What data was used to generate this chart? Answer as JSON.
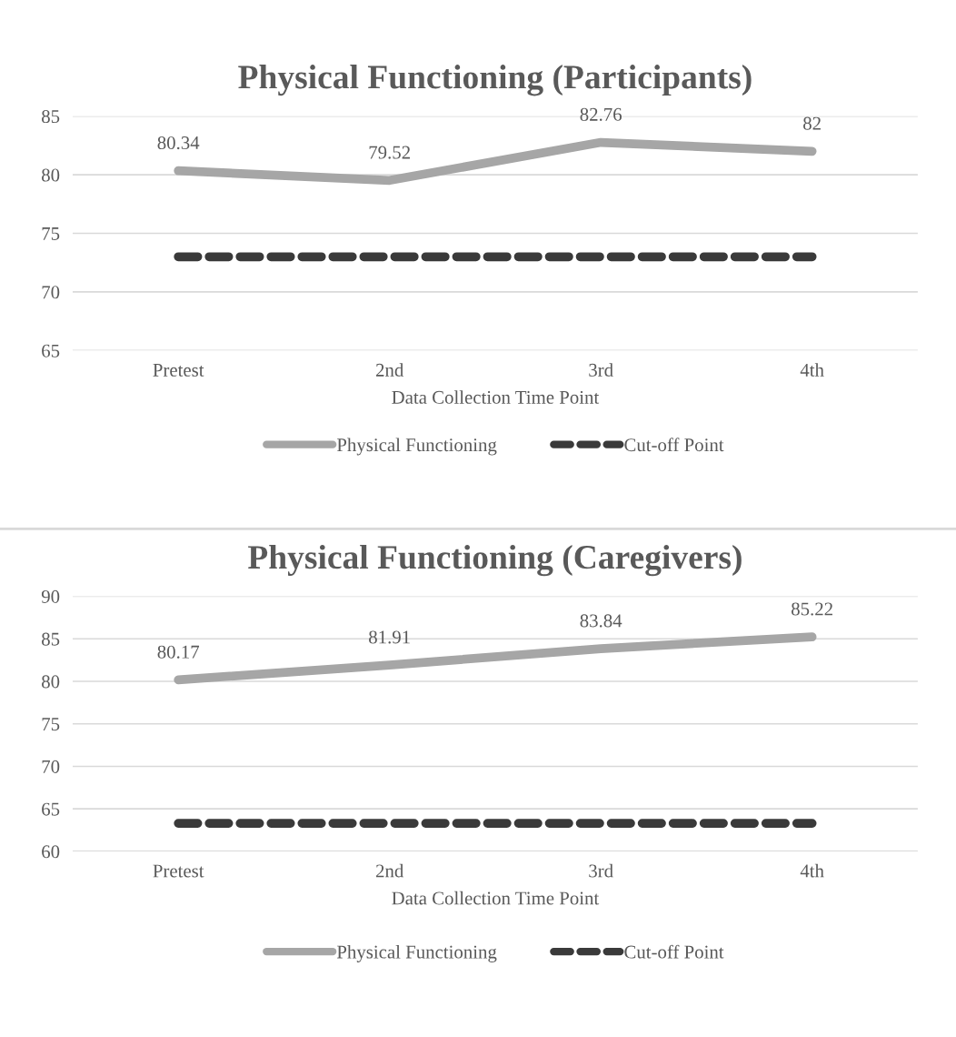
{
  "chart_data": [
    {
      "type": "line",
      "title": "Physical Functioning (Participants)",
      "xlabel": "Data Collection Time Point",
      "categories": [
        "Pretest",
        "2nd",
        "3rd",
        "4th"
      ],
      "series": [
        {
          "name": "Physical Functioning",
          "color": "#a6a6a6",
          "values": [
            80.34,
            79.52,
            82.76,
            82
          ],
          "value_labels": [
            "80.34",
            "79.52",
            "82.76",
            "82"
          ],
          "line_style": "solid"
        },
        {
          "name": "Cut-off Point",
          "color": "#3a3a3a",
          "values": [
            73,
            73,
            73,
            73
          ],
          "line_style": "dashed"
        }
      ],
      "ylim": [
        65,
        85
      ],
      "yticks": [
        65,
        70,
        75,
        80,
        85
      ],
      "grid": "y",
      "legend": "bottom",
      "marker": "none"
    },
    {
      "type": "line",
      "title": "Physical Functioning (Caregivers)",
      "xlabel": "Data Collection Time Point",
      "categories": [
        "Pretest",
        "2nd",
        "3rd",
        "4th"
      ],
      "series": [
        {
          "name": "Physical Functioning",
          "color": "#a6a6a6",
          "values": [
            80.17,
            81.91,
            83.84,
            85.22
          ],
          "value_labels": [
            "80.17",
            "81.91",
            "83.84",
            "85.22"
          ],
          "line_style": "solid"
        },
        {
          "name": "Cut-off Point",
          "color": "#3a3a3a",
          "values": [
            63.3,
            63.3,
            63.3,
            63.3
          ],
          "line_style": "dashed"
        }
      ],
      "ylim": [
        60,
        90
      ],
      "yticks": [
        60,
        65,
        70,
        75,
        80,
        85,
        90
      ],
      "grid": "y",
      "legend": "bottom",
      "marker": "none"
    }
  ]
}
